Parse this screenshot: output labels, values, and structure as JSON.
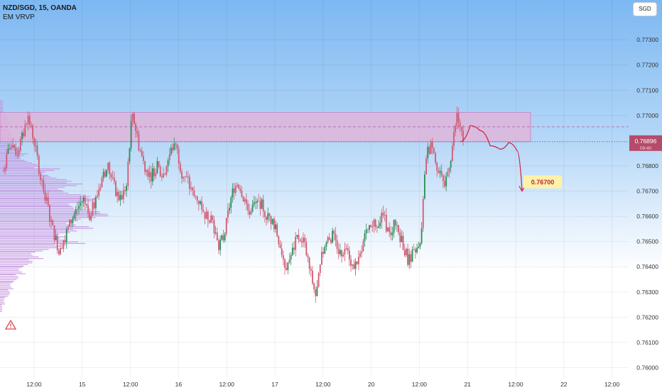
{
  "header": {
    "symbol_line": "NZD/SGD, 15, OANDA",
    "indicator": "EM VRVP"
  },
  "currency_button": "SGD",
  "colors": {
    "background_top": "#7cb8f2",
    "background_bottom": "#ffffff",
    "zone_fill": "#e0b4d8",
    "zone_border": "#c87cc4",
    "candle": "#d05a72",
    "candle_up": "#2e8b57",
    "volume_profile": "#c48cde",
    "projection": "#d0284a",
    "target_label_bg": "#fff2a8"
  },
  "chart_data": {
    "type": "candlestick",
    "title": "NZD/SGD, 15, OANDA",
    "x_tick_labels": [
      "12:00",
      "15",
      "12:00",
      "16",
      "12:00",
      "17",
      "12:00",
      "20",
      "12:00",
      "21",
      "12:00",
      "22",
      "12:00"
    ],
    "y_tick_labels": [
      "0.77300",
      "0.77200",
      "0.77100",
      "0.77000",
      "0.76800",
      "0.76700",
      "0.76600",
      "0.76500",
      "0.76400",
      "0.76300",
      "0.76200",
      "0.76100",
      "0.76000"
    ],
    "y_ticks": [
      0.773,
      0.772,
      0.771,
      0.77,
      0.768,
      0.767,
      0.766,
      0.765,
      0.764,
      0.763,
      0.762,
      0.761,
      0.76
    ],
    "ylim": [
      0.75962,
      0.77458
    ],
    "current_price": "0.76896",
    "current_price_subtext": "09:40",
    "resistance_zone": [
      0.76896,
      0.77012
    ],
    "zone_midline": 0.76955,
    "target_label": "0.76700",
    "target": 0.767,
    "projection_path": [
      0.76896,
      0.7696,
      0.7694,
      0.7688,
      0.76866,
      0.76892,
      0.7686,
      0.767
    ],
    "price_path": [
      0.7678,
      0.7688,
      0.7684,
      0.7691,
      0.7699,
      0.769,
      0.7676,
      0.7666,
      0.7655,
      0.7647,
      0.7652,
      0.7658,
      0.7663,
      0.7667,
      0.766,
      0.7666,
      0.7675,
      0.768,
      0.7672,
      0.7666,
      0.7672,
      0.7702,
      0.7689,
      0.768,
      0.7676,
      0.768,
      0.7676,
      0.7684,
      0.769,
      0.7678,
      0.7674,
      0.7668,
      0.7666,
      0.766,
      0.766,
      0.7648,
      0.7652,
      0.7666,
      0.7675,
      0.7669,
      0.7662,
      0.7665,
      0.7665,
      0.766,
      0.7658,
      0.765,
      0.764,
      0.7645,
      0.7652,
      0.765,
      0.7638,
      0.7628,
      0.7645,
      0.7652,
      0.7652,
      0.7645,
      0.7648,
      0.764,
      0.7642,
      0.7652,
      0.7655,
      0.7658,
      0.766,
      0.7652,
      0.7658,
      0.765,
      0.7643,
      0.7645,
      0.7648,
      0.7685,
      0.7689,
      0.7677,
      0.7672,
      0.7684,
      0.77,
      0.769
    ],
    "volume_profile_levels": [
      0.7706,
      0.7703,
      0.77,
      0.7697,
      0.7694,
      0.7691,
      0.7688,
      0.7685,
      0.7682,
      0.7679,
      0.7676,
      0.7673,
      0.767,
      0.7667,
      0.7664,
      0.7661,
      0.7658,
      0.7655,
      0.7652,
      0.7649,
      0.7646,
      0.7643,
      0.764,
      0.7637,
      0.7634,
      0.7631,
      0.7628,
      0.7625
    ],
    "volume_profile_values": [
      6,
      8,
      14,
      18,
      22,
      34,
      40,
      52,
      70,
      110,
      130,
      150,
      165,
      175,
      185,
      200,
      170,
      140,
      155,
      110,
      80,
      60,
      48,
      34,
      26,
      18,
      10,
      4
    ],
    "grid": true
  }
}
